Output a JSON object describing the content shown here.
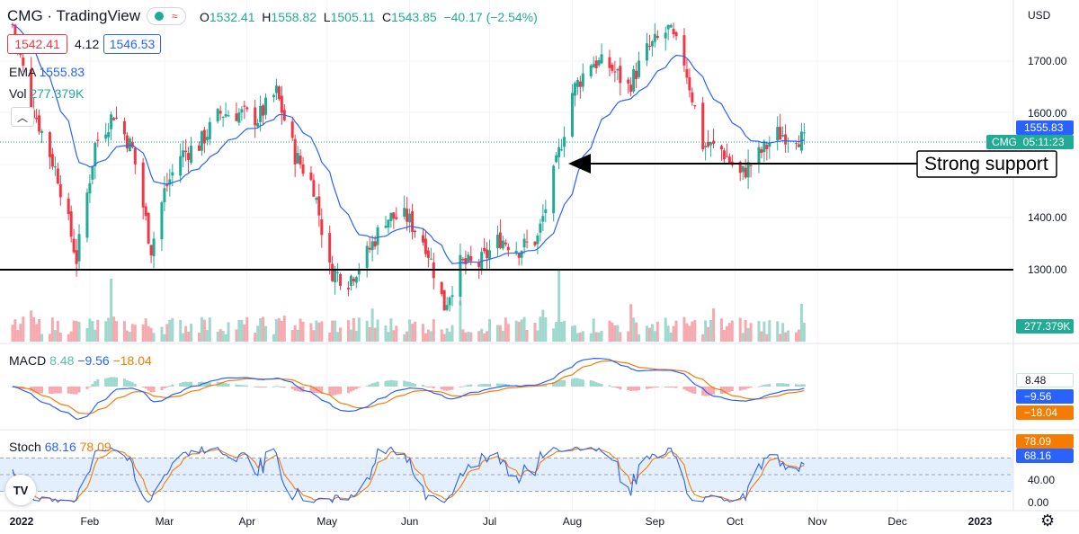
{
  "header": {
    "symbol": "CMG · TradingView",
    "open_label": "O",
    "open": "1532.41",
    "high_label": "H",
    "high": "1558.82",
    "low_label": "L",
    "low": "1505.11",
    "close_label": "C",
    "close": "1543.85",
    "change": "−40.17 (−2.54%)",
    "bid": "1542.41",
    "spread": "4.12",
    "ask": "1546.53",
    "ema_label": "EMA",
    "ema_value": "1555.83",
    "vol_label": "Vol",
    "vol_value": "277.379K",
    "currency": "USD"
  },
  "price_axis": [
    "1700.00",
    "1600.00",
    "1400.00",
    "1300.00"
  ],
  "price_badges": {
    "ema": "1555.83",
    "symbol": "CMG",
    "countdown": "05:11:23",
    "volume": "277.379K"
  },
  "annotation": "Strong support",
  "macd": {
    "label": "MACD",
    "hist": "8.48",
    "macd": "−9.56",
    "signal": "−18.04"
  },
  "stoch": {
    "label": "Stoch",
    "k": "68.16",
    "d": "78.09",
    "axis": [
      "40.00",
      "0.00"
    ]
  },
  "time_axis": [
    "2022",
    "Feb",
    "Mar",
    "Apr",
    "May",
    "Jun",
    "Jul",
    "Aug",
    "Sep",
    "Oct",
    "Nov",
    "Dec",
    "2023"
  ],
  "colors": {
    "up": "#22ab94",
    "down": "#f23645",
    "ema": "#2962ff",
    "signal": "#f57c00",
    "support": "#000000"
  },
  "icons": [
    "tradingview-logo-icon",
    "settings-gear-icon",
    "collapse-chevron-icon"
  ],
  "chart_data": {
    "type": "candlestick",
    "title": "CMG",
    "period": "2022-01 to 2022-10",
    "price_keyframes": {
      "dates": [
        "2022-01-03",
        "2022-01-10",
        "2022-01-20",
        "2022-01-27",
        "2022-02-03",
        "2022-02-10",
        "2022-02-17",
        "2022-02-24",
        "2022-03-01",
        "2022-03-07",
        "2022-03-14",
        "2022-03-22",
        "2022-03-29",
        "2022-04-05",
        "2022-04-12",
        "2022-04-19",
        "2022-04-26",
        "2022-05-02",
        "2022-05-09",
        "2022-05-16",
        "2022-05-23",
        "2022-05-31",
        "2022-06-07",
        "2022-06-14",
        "2022-06-20",
        "2022-06-27",
        "2022-07-05",
        "2022-07-12",
        "2022-07-19",
        "2022-07-26",
        "2022-08-01",
        "2022-08-08",
        "2022-08-15",
        "2022-08-22",
        "2022-08-29",
        "2022-09-06",
        "2022-09-12",
        "2022-09-19",
        "2022-09-26",
        "2022-10-03",
        "2022-10-10",
        "2022-10-17",
        "2022-10-24",
        "2022-10-27"
      ],
      "close": [
        1770,
        1620,
        1480,
        1320,
        1540,
        1600,
        1530,
        1340,
        1450,
        1520,
        1540,
        1600,
        1600,
        1590,
        1640,
        1520,
        1460,
        1300,
        1280,
        1330,
        1400,
        1400,
        1350,
        1230,
        1310,
        1310,
        1360,
        1340,
        1360,
        1500,
        1640,
        1700,
        1690,
        1650,
        1720,
        1760,
        1700,
        1540,
        1530,
        1480,
        1520,
        1560,
        1560,
        1544
      ]
    },
    "support_levels": [
      1300,
      1500
    ],
    "ylim": [
      1195,
      1790
    ],
    "ema_last": 1555.83,
    "volume_last": "277.379K",
    "macd_last": {
      "hist": 8.48,
      "macd": -9.56,
      "signal": -18.04
    },
    "stoch_last": {
      "k": 68.16,
      "d": 78.09
    },
    "stoch_ylim": [
      0,
      100
    ]
  }
}
